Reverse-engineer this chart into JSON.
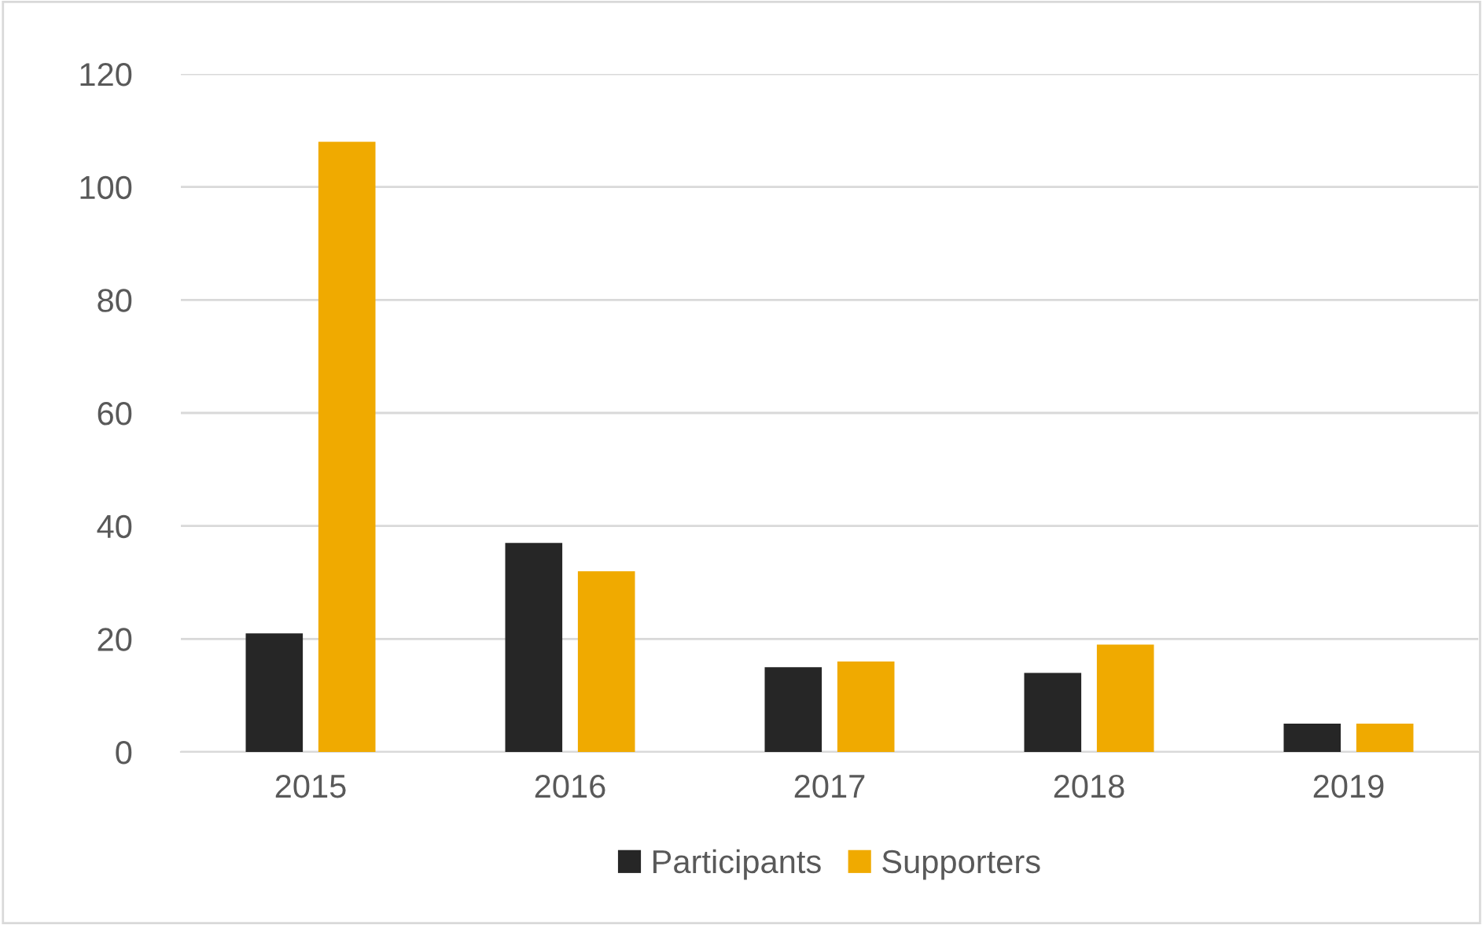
{
  "chart_data": {
    "type": "bar",
    "categories": [
      "2015",
      "2016",
      "2017",
      "2018",
      "2019"
    ],
    "series": [
      {
        "name": "Participants",
        "color": "#262626",
        "values": [
          21,
          37,
          15,
          14,
          5
        ]
      },
      {
        "name": "Supporters",
        "color": "#f0aa00",
        "values": [
          108,
          32,
          16,
          19,
          5
        ]
      }
    ],
    "ylim": [
      0,
      120
    ],
    "yticks": [
      0,
      20,
      40,
      60,
      80,
      100,
      120
    ],
    "grid": "y",
    "legend": "bottom"
  }
}
